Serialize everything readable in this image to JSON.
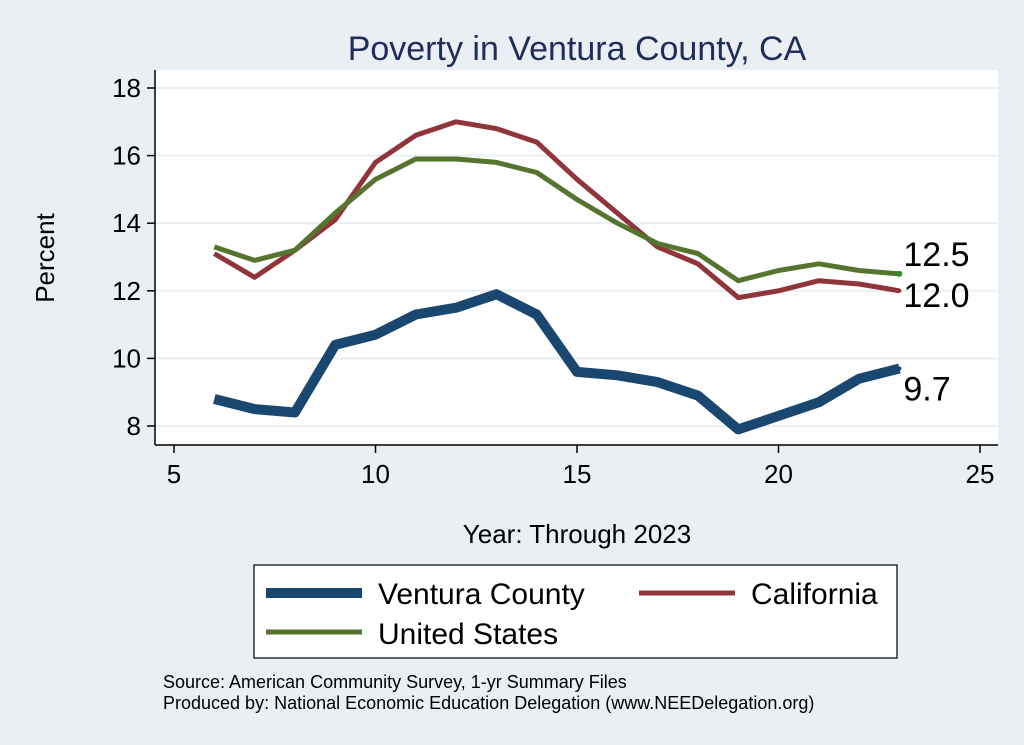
{
  "chart_data": {
    "type": "line",
    "title": "Poverty in Ventura County, CA",
    "xlabel": "Year: Through 2023",
    "ylabel": "Percent",
    "xlim": [
      5,
      25
    ],
    "ylim": [
      8,
      18
    ],
    "xticks": [
      5,
      10,
      15,
      20,
      25
    ],
    "yticks": [
      8,
      10,
      12,
      14,
      16,
      18
    ],
    "grid": true,
    "legend_position": "bottom",
    "series": [
      {
        "name": "Ventura County",
        "color": "#1a476f",
        "width": 10,
        "x": [
          6,
          7,
          8,
          9,
          10,
          11,
          12,
          13,
          14,
          15,
          16,
          17,
          18,
          19,
          20,
          21,
          22,
          23
        ],
        "values": [
          8.8,
          8.5,
          8.4,
          10.4,
          10.7,
          11.3,
          11.5,
          11.9,
          11.3,
          9.6,
          9.5,
          9.3,
          8.9,
          7.9,
          8.3,
          8.7,
          9.4,
          9.7
        ],
        "end_label": "9.7"
      },
      {
        "name": "California",
        "color": "#90353b",
        "width": 5,
        "x": [
          6,
          7,
          8,
          9,
          10,
          11,
          12,
          13,
          14,
          15,
          16,
          17,
          18,
          19,
          20,
          21,
          22,
          23
        ],
        "values": [
          13.1,
          12.4,
          13.2,
          14.1,
          15.8,
          16.6,
          17.0,
          16.8,
          16.4,
          15.3,
          14.3,
          13.3,
          12.8,
          11.8,
          12.0,
          12.3,
          12.2,
          12.0
        ],
        "end_label": "12.0"
      },
      {
        "name": "United States",
        "color": "#55752f",
        "width": 5,
        "x": [
          6,
          7,
          8,
          9,
          10,
          11,
          12,
          13,
          14,
          15,
          16,
          17,
          18,
          19,
          20,
          21,
          22,
          23
        ],
        "values": [
          13.3,
          12.9,
          13.2,
          14.3,
          15.3,
          15.9,
          15.9,
          15.8,
          15.5,
          14.7,
          14.0,
          13.4,
          13.1,
          12.3,
          12.6,
          12.8,
          12.6,
          12.5
        ],
        "end_label": "12.5"
      }
    ],
    "legend_order": [
      "Ventura County",
      "California",
      "United States"
    ],
    "notes": [
      "Source: American Community Survey, 1-yr Summary Files",
      "Produced by: National Economic Education Delegation (www.NEEDelegation.org)"
    ]
  },
  "colors": {
    "outer_background": "#e9eff3",
    "plot_background": "#ffffff",
    "grid": "#e9eff3",
    "title": "#1e2d5a",
    "text": "#000000"
  }
}
